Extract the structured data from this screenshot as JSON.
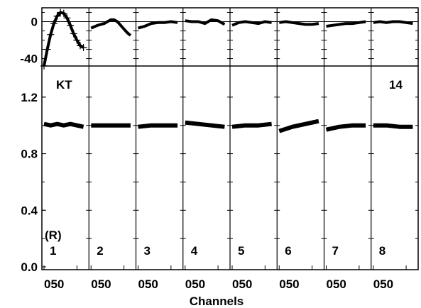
{
  "chart_data": {
    "type": "line",
    "xlabel": "Channels",
    "panel_count": 8,
    "x_tick_labels": [
      "0",
      "50"
    ],
    "top_row": {
      "yticks": [
        0,
        -40
      ],
      "ylim": [
        -48,
        15
      ]
    },
    "bottom_row": {
      "yticks": [
        "0.0",
        "0.4",
        "0.8",
        "1.2"
      ],
      "ylim": [
        -0.02,
        1.42
      ]
    },
    "labels": {
      "kt": "KT",
      "number": "14",
      "receiver": "(R)"
    },
    "panels": [
      {
        "label": "1",
        "phase_style": "plus",
        "phase": [
          [
            0,
            -48
          ],
          [
            5,
            -30
          ],
          [
            10,
            -14
          ],
          [
            15,
            -2
          ],
          [
            20,
            6
          ],
          [
            25,
            10
          ],
          [
            30,
            9
          ],
          [
            35,
            4
          ],
          [
            40,
            -4
          ],
          [
            45,
            -13
          ],
          [
            50,
            -20
          ],
          [
            55,
            -26
          ],
          [
            60,
            -28
          ]
        ],
        "amp": [
          [
            0,
            1.01
          ],
          [
            10,
            1.0
          ],
          [
            20,
            1.01
          ],
          [
            30,
            1.0
          ],
          [
            40,
            1.01
          ],
          [
            50,
            1.0
          ],
          [
            60,
            0.99
          ]
        ]
      },
      {
        "label": "2",
        "phase": [
          [
            0,
            -7
          ],
          [
            10,
            -4
          ],
          [
            20,
            -2
          ],
          [
            25,
            0
          ],
          [
            30,
            2
          ],
          [
            35,
            2
          ],
          [
            40,
            0
          ],
          [
            45,
            -4
          ],
          [
            50,
            -8
          ],
          [
            55,
            -12
          ],
          [
            60,
            -15
          ]
        ],
        "amp": [
          [
            0,
            1.0
          ],
          [
            20,
            1.0
          ],
          [
            40,
            1.0
          ],
          [
            60,
            1.0
          ]
        ]
      },
      {
        "label": "3",
        "phase": [
          [
            0,
            -7
          ],
          [
            10,
            -5
          ],
          [
            20,
            -2
          ],
          [
            30,
            -1
          ],
          [
            40,
            -1
          ],
          [
            50,
            0
          ],
          [
            60,
            -1
          ]
        ],
        "amp": [
          [
            0,
            0.99
          ],
          [
            20,
            1.0
          ],
          [
            40,
            1.0
          ],
          [
            60,
            1.0
          ]
        ]
      },
      {
        "label": "4",
        "phase": [
          [
            0,
            1
          ],
          [
            10,
            0
          ],
          [
            20,
            0
          ],
          [
            30,
            -2
          ],
          [
            40,
            2
          ],
          [
            50,
            1
          ],
          [
            60,
            -3
          ]
        ],
        "amp": [
          [
            0,
            1.02
          ],
          [
            20,
            1.01
          ],
          [
            40,
            1.0
          ],
          [
            60,
            0.99
          ]
        ]
      },
      {
        "label": "5",
        "phase": [
          [
            0,
            -4
          ],
          [
            10,
            -1
          ],
          [
            20,
            0
          ],
          [
            30,
            -1
          ],
          [
            40,
            -2
          ],
          [
            50,
            0
          ],
          [
            60,
            -1
          ]
        ],
        "amp": [
          [
            0,
            0.99
          ],
          [
            20,
            1.0
          ],
          [
            40,
            1.0
          ],
          [
            60,
            1.01
          ]
        ]
      },
      {
        "label": "6",
        "phase": [
          [
            0,
            -1
          ],
          [
            10,
            0
          ],
          [
            20,
            -1
          ],
          [
            30,
            -2
          ],
          [
            40,
            -3
          ],
          [
            50,
            -3
          ],
          [
            60,
            -2
          ]
        ],
        "amp": [
          [
            0,
            0.96
          ],
          [
            20,
            0.99
          ],
          [
            40,
            1.01
          ],
          [
            60,
            1.03
          ]
        ]
      },
      {
        "label": "7",
        "phase": [
          [
            0,
            -5
          ],
          [
            10,
            -4
          ],
          [
            20,
            -3
          ],
          [
            30,
            -2
          ],
          [
            40,
            -2
          ],
          [
            50,
            -1
          ],
          [
            60,
            0
          ]
        ],
        "amp": [
          [
            0,
            0.97
          ],
          [
            20,
            0.99
          ],
          [
            40,
            1.0
          ],
          [
            60,
            1.0
          ]
        ]
      },
      {
        "label": "8",
        "phase": [
          [
            0,
            -1
          ],
          [
            10,
            0
          ],
          [
            20,
            -1
          ],
          [
            30,
            0
          ],
          [
            40,
            0
          ],
          [
            50,
            -1
          ],
          [
            60,
            -2
          ]
        ],
        "amp": [
          [
            0,
            1.0
          ],
          [
            20,
            1.0
          ],
          [
            40,
            0.99
          ],
          [
            60,
            0.99
          ]
        ]
      }
    ]
  }
}
